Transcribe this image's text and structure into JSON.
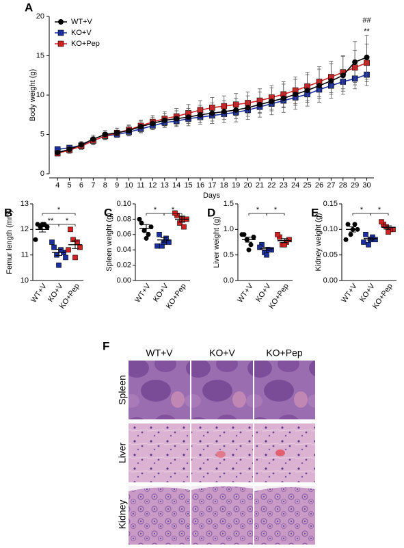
{
  "chart_data": [
    {
      "type": "line",
      "label": "A",
      "xlabel": "Days",
      "ylabel": "Body weight (g)",
      "x": [
        4,
        5,
        6,
        7,
        8,
        9,
        10,
        11,
        12,
        13,
        14,
        15,
        16,
        17,
        18,
        19,
        20,
        21,
        22,
        23,
        24,
        25,
        26,
        27,
        28,
        29,
        30
      ],
      "xlim": [
        3.3,
        30.6
      ],
      "xticks": [
        4,
        5,
        6,
        7,
        8,
        9,
        10,
        11,
        12,
        13,
        14,
        15,
        16,
        17,
        18,
        19,
        20,
        21,
        22,
        23,
        24,
        25,
        26,
        27,
        28,
        29,
        30
      ],
      "ylim": [
        0,
        20
      ],
      "yticks": [
        0,
        5,
        10,
        15,
        20
      ],
      "legend": "upper left",
      "annotations": [
        "##",
        "**"
      ],
      "series": [
        {
          "name": "WT+V",
          "color": "#000000",
          "marker": "circle",
          "values": [
            2.7,
            3.1,
            3.7,
            4.4,
            5.0,
            5.2,
            5.5,
            6.0,
            6.4,
            6.8,
            7.0,
            7.2,
            7.5,
            7.7,
            7.9,
            8.1,
            8.4,
            8.8,
            9.2,
            9.6,
            10.1,
            10.6,
            11.2,
            11.8,
            12.5,
            14.2,
            14.8
          ],
          "errors": [
            0.3,
            0.4,
            0.4,
            0.5,
            0.5,
            0.6,
            0.6,
            0.7,
            0.8,
            0.9,
            1.0,
            1.1,
            1.2,
            1.3,
            1.4,
            1.5,
            1.5,
            1.6,
            1.7,
            1.8,
            1.9,
            2.0,
            2.1,
            2.2,
            2.4,
            2.6,
            2.8
          ]
        },
        {
          "name": "KO+V",
          "color": "#1a2fa0",
          "marker": "square",
          "values": [
            3.1,
            3.3,
            3.6,
            4.2,
            4.8,
            5.0,
            5.3,
            5.7,
            6.1,
            6.5,
            6.7,
            7.0,
            7.2,
            7.4,
            7.6,
            7.8,
            8.1,
            8.5,
            8.9,
            9.3,
            9.7,
            10.1,
            10.7,
            11.2,
            11.7,
            12.1,
            12.6
          ],
          "errors": [
            0.3,
            0.3,
            0.3,
            0.4,
            0.4,
            0.4,
            0.5,
            0.5,
            0.5,
            0.6,
            0.6,
            0.6,
            0.7,
            0.7,
            0.7,
            0.8,
            0.8,
            0.8,
            0.9,
            0.9,
            1.0,
            1.0,
            1.1,
            1.1,
            1.2,
            1.3,
            1.4
          ]
        },
        {
          "name": "KO+Pep",
          "color": "#d42020",
          "marker": "square",
          "values": [
            2.6,
            3.0,
            3.5,
            4.2,
            4.8,
            5.2,
            5.6,
            6.1,
            6.6,
            7.0,
            7.3,
            7.7,
            8.1,
            8.4,
            8.6,
            8.8,
            9.0,
            9.3,
            9.7,
            10.1,
            10.6,
            11.1,
            11.7,
            12.3,
            12.9,
            13.5,
            14.1
          ],
          "errors": [
            0.3,
            0.4,
            0.4,
            0.5,
            0.5,
            0.6,
            0.6,
            0.7,
            0.8,
            0.9,
            1.0,
            1.1,
            1.2,
            1.3,
            1.3,
            1.4,
            1.4,
            1.5,
            1.5,
            1.6,
            1.7,
            1.8,
            1.9,
            2.0,
            2.1,
            2.2,
            2.4
          ]
        }
      ]
    },
    {
      "type": "dot",
      "label": "B",
      "ylabel": "Femur length (mm)",
      "categories": [
        "WT+V",
        "KO+V",
        "KO+Pep"
      ],
      "colors": [
        "#000000",
        "#1a2fa0",
        "#d42020"
      ],
      "markers": [
        "circle",
        "square",
        "square"
      ],
      "ylim": [
        10,
        13
      ],
      "yticks": [
        10,
        11,
        12,
        13
      ],
      "points": [
        [
          12.2,
          12.1,
          12.1,
          12.2,
          12.2,
          11.6
        ],
        [
          11.3,
          11.1,
          11.0,
          11.2,
          10.6,
          11.5,
          10.9
        ],
        [
          12.0,
          11.3,
          11.6,
          11.5,
          10.9,
          11.2
        ]
      ],
      "means": [
        12.0,
        11.1,
        11.4
      ],
      "errors": [
        0.1,
        0.12,
        0.15
      ],
      "brackets": [
        {
          "between": [
            "WT+V",
            "KO+Pep"
          ],
          "text": "*"
        },
        {
          "between": [
            "WT+V",
            "KO+V"
          ],
          "text": "**"
        },
        {
          "between": [
            "KO+V",
            "KO+Pep"
          ],
          "text": "*"
        }
      ]
    },
    {
      "type": "dot",
      "label": "C",
      "ylabel": "Spleen weight (g)",
      "categories": [
        "WT+V",
        "KO+V",
        "KO+Pep"
      ],
      "colors": [
        "#000000",
        "#1a2fa0",
        "#d42020"
      ],
      "markers": [
        "circle",
        "square",
        "square"
      ],
      "ylim": [
        0,
        0.1
      ],
      "yticks": [
        {
          "value": 0,
          "label": "0.00"
        },
        {
          "value": 0.02,
          "label": "0.02"
        },
        {
          "value": 0.04,
          "label": "0.04"
        },
        {
          "value": 0.06,
          "label": "0.06"
        },
        {
          "value": 0.08,
          "label": "0.08"
        },
        {
          "value": 0.1,
          "label": "0.10"
        }
      ],
      "points": [
        [
          0.075,
          0.07,
          0.065,
          0.06,
          0.055,
          0.08
        ],
        [
          0.06,
          0.05,
          0.045,
          0.055,
          0.05,
          0.045
        ],
        [
          0.085,
          0.08,
          0.075,
          0.07,
          0.08,
          0.088
        ]
      ],
      "means": [
        0.068,
        0.053,
        0.08
      ],
      "errors": [
        0.005,
        0.003,
        0.004
      ],
      "brackets": [
        {
          "between": [
            "WT+V",
            "KO+V"
          ],
          "text": "*"
        },
        {
          "between": [
            "KO+V",
            "KO+Pep"
          ],
          "text": "*"
        }
      ]
    },
    {
      "type": "dot",
      "label": "D",
      "ylabel": "Liver weight (g)",
      "categories": [
        "WT+V",
        "KO+V",
        "KO+Pep"
      ],
      "colors": [
        "#000000",
        "#1a2fa0",
        "#d42020"
      ],
      "markers": [
        "circle",
        "square",
        "square"
      ],
      "ylim": [
        0,
        1.5
      ],
      "yticks": [
        {
          "value": 0,
          "label": "0.0"
        },
        {
          "value": 0.5,
          "label": "0.5"
        },
        {
          "value": 1,
          "label": "1.0"
        },
        {
          "value": 1.5,
          "label": "1.5"
        }
      ],
      "points": [
        [
          0.9,
          0.85,
          0.8,
          0.7,
          0.6,
          0.9
        ],
        [
          0.7,
          0.6,
          0.55,
          0.6,
          0.5,
          0.65
        ],
        [
          0.85,
          0.8,
          0.7,
          0.75,
          0.7,
          0.9
        ]
      ],
      "means": [
        0.8,
        0.62,
        0.78
      ],
      "errors": [
        0.05,
        0.03,
        0.04
      ],
      "brackets": [
        {
          "between": [
            "WT+V",
            "KO+V"
          ],
          "text": "*"
        },
        {
          "between": [
            "KO+V",
            "KO+Pep"
          ],
          "text": "*"
        }
      ]
    },
    {
      "type": "dot",
      "label": "E",
      "ylabel": "Kidney weight (g)",
      "categories": [
        "WT+V",
        "KO+V",
        "KO+Pep"
      ],
      "colors": [
        "#000000",
        "#1a2fa0",
        "#d42020"
      ],
      "markers": [
        "circle",
        "square",
        "square"
      ],
      "ylim": [
        0,
        0.15
      ],
      "yticks": [
        {
          "value": 0,
          "label": "0.00"
        },
        {
          "value": 0.05,
          "label": "0.05"
        },
        {
          "value": 0.1,
          "label": "0.10"
        },
        {
          "value": 0.15,
          "label": "0.15"
        }
      ],
      "points": [
        [
          0.11,
          0.1,
          0.09,
          0.11,
          0.1,
          0.08
        ],
        [
          0.09,
          0.08,
          0.07,
          0.085,
          0.08,
          0.075
        ],
        [
          0.11,
          0.1,
          0.105,
          0.1,
          0.095,
          0.115
        ]
      ],
      "means": [
        0.1,
        0.082,
        0.104
      ],
      "errors": [
        0.005,
        0.003,
        0.003
      ],
      "brackets": [
        {
          "between": [
            "WT+V",
            "KO+V"
          ],
          "text": "*"
        },
        {
          "between": [
            "KO+V",
            "KO+Pep"
          ],
          "text": "*"
        }
      ]
    }
  ],
  "histology": {
    "label": "F",
    "columns": [
      "WT+V",
      "KO+V",
      "KO+Pep"
    ],
    "rows": [
      "Spleen",
      "Liver",
      "Kidney"
    ]
  }
}
